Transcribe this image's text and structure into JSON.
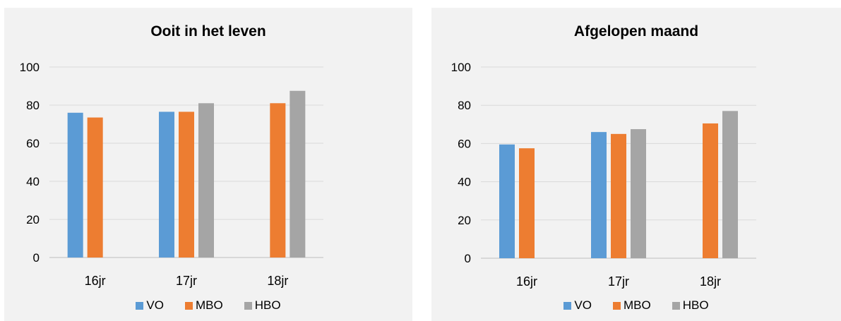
{
  "colors": {
    "VO": "#5b9bd5",
    "MBO": "#ed7d31",
    "HBO": "#a5a5a5",
    "grid": "#d9d9d9",
    "panel": "#f2f2f2"
  },
  "chart_data": [
    {
      "type": "bar",
      "title": "Ooit in het leven",
      "categories": [
        "16jr",
        "17jr",
        "18jr"
      ],
      "series": [
        {
          "name": "VO",
          "values": [
            76,
            76.5,
            null
          ]
        },
        {
          "name": "MBO",
          "values": [
            73.5,
            76.5,
            81
          ]
        },
        {
          "name": "HBO",
          "values": [
            null,
            81,
            87.5
          ]
        }
      ],
      "ylim": [
        0,
        100
      ],
      "yticks": [
        0,
        20,
        40,
        60,
        80,
        100
      ],
      "grid": true,
      "legend": "bottom"
    },
    {
      "type": "bar",
      "title": "Afgelopen maand",
      "categories": [
        "16jr",
        "17jr",
        "18jr"
      ],
      "series": [
        {
          "name": "VO",
          "values": [
            59.5,
            66,
            null
          ]
        },
        {
          "name": "MBO",
          "values": [
            57.5,
            65,
            70.5
          ]
        },
        {
          "name": "HBO",
          "values": [
            null,
            67.5,
            77
          ]
        }
      ],
      "ylim": [
        0,
        100
      ],
      "yticks": [
        0,
        20,
        40,
        60,
        80,
        100
      ],
      "grid": true,
      "legend": "bottom"
    }
  ]
}
